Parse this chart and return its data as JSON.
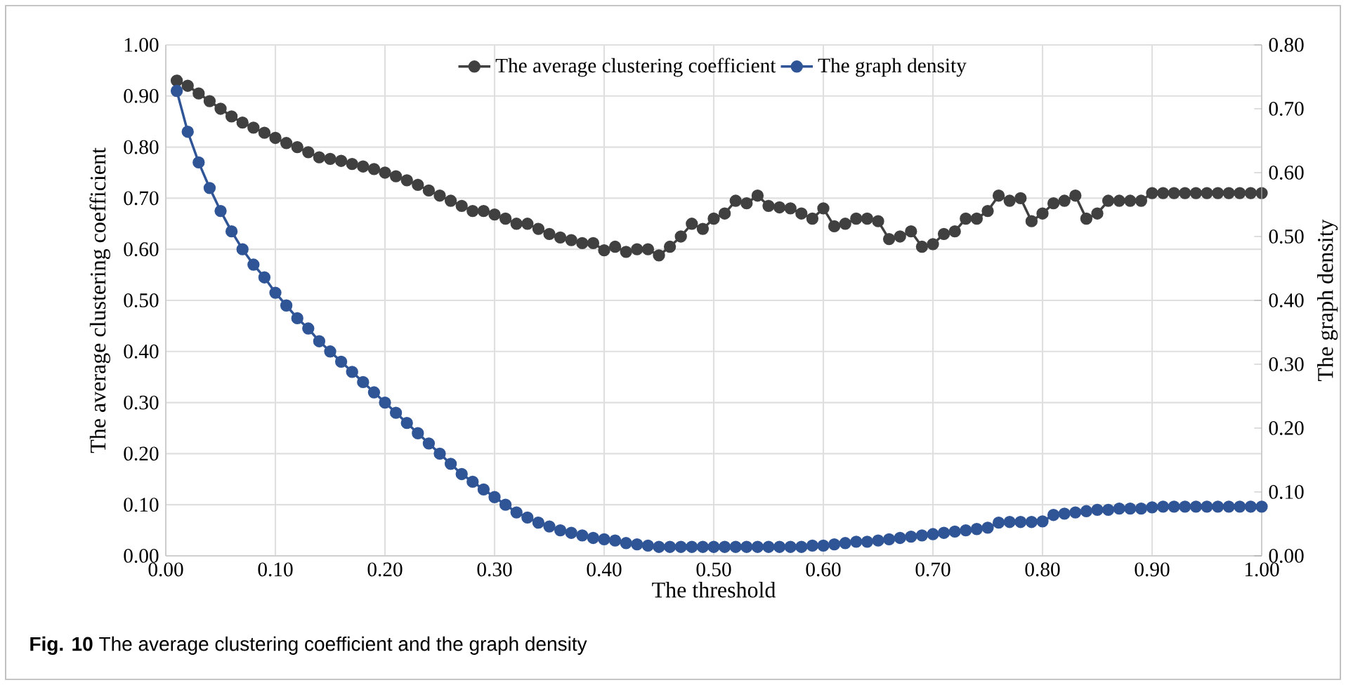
{
  "chart_data": {
    "type": "line",
    "xlabel": "The threshold",
    "ylabel": "The average clustering coefficient",
    "y2label": "The graph density",
    "annotations": [
      "**Fig. 10** The average clustering coefficient and the graph density"
    ],
    "x": [
      0.01,
      0.02,
      0.03,
      0.04,
      0.05,
      0.06,
      0.07,
      0.08,
      0.09,
      0.1,
      0.11,
      0.12,
      0.13,
      0.14,
      0.15,
      0.16,
      0.17,
      0.18,
      0.19,
      0.2,
      0.21,
      0.22,
      0.23,
      0.24,
      0.25,
      0.26,
      0.27,
      0.28,
      0.29,
      0.3,
      0.31,
      0.32,
      0.33,
      0.34,
      0.35,
      0.36,
      0.37,
      0.38,
      0.39,
      0.4,
      0.41,
      0.42,
      0.43,
      0.44,
      0.45,
      0.46,
      0.47,
      0.48,
      0.49,
      0.5,
      0.51,
      0.52,
      0.53,
      0.54,
      0.55,
      0.56,
      0.57,
      0.58,
      0.59,
      0.6,
      0.61,
      0.62,
      0.63,
      0.64,
      0.65,
      0.66,
      0.67,
      0.68,
      0.69,
      0.7,
      0.71,
      0.72,
      0.73,
      0.74,
      0.75,
      0.76,
      0.77,
      0.78,
      0.79,
      0.8,
      0.81,
      0.82,
      0.83,
      0.84,
      0.85,
      0.86,
      0.87,
      0.88,
      0.89,
      0.9,
      0.91,
      0.92,
      0.93,
      0.94,
      0.95,
      0.96,
      0.97,
      0.98,
      0.99,
      1.0
    ],
    "series": [
      {
        "name": "The average clustering coefficient",
        "color": "#404040",
        "axis": "y",
        "values": [
          0.93,
          0.92,
          0.905,
          0.89,
          0.875,
          0.86,
          0.848,
          0.838,
          0.828,
          0.818,
          0.808,
          0.8,
          0.79,
          0.78,
          0.777,
          0.773,
          0.767,
          0.762,
          0.757,
          0.75,
          0.743,
          0.735,
          0.726,
          0.715,
          0.705,
          0.695,
          0.685,
          0.675,
          0.675,
          0.668,
          0.66,
          0.65,
          0.65,
          0.64,
          0.63,
          0.623,
          0.618,
          0.612,
          0.612,
          0.598,
          0.605,
          0.595,
          0.6,
          0.6,
          0.588,
          0.605,
          0.625,
          0.65,
          0.64,
          0.66,
          0.67,
          0.695,
          0.69,
          0.705,
          0.685,
          0.682,
          0.68,
          0.67,
          0.66,
          0.68,
          0.645,
          0.65,
          0.66,
          0.66,
          0.655,
          0.62,
          0.625,
          0.635,
          0.605,
          0.61,
          0.63,
          0.635,
          0.66,
          0.66,
          0.675,
          0.705,
          0.695,
          0.7,
          0.655,
          0.67,
          0.69,
          0.695,
          0.705,
          0.66,
          0.67,
          0.695,
          0.695,
          0.695,
          0.695,
          0.71,
          0.71,
          0.71,
          0.71,
          0.71,
          0.71,
          0.71,
          0.71,
          0.71,
          0.71,
          0.71
        ]
      },
      {
        "name": "The graph density",
        "color": "#2f5597",
        "axis": "y2",
        "values": [
          0.728,
          0.664,
          0.616,
          0.576,
          0.54,
          0.508,
          0.48,
          0.456,
          0.436,
          0.412,
          0.392,
          0.372,
          0.356,
          0.336,
          0.32,
          0.304,
          0.288,
          0.272,
          0.256,
          0.24,
          0.224,
          0.208,
          0.192,
          0.176,
          0.16,
          0.144,
          0.128,
          0.116,
          0.104,
          0.092,
          0.08,
          0.068,
          0.06,
          0.052,
          0.046,
          0.04,
          0.036,
          0.032,
          0.028,
          0.026,
          0.024,
          0.02,
          0.018,
          0.016,
          0.014,
          0.014,
          0.014,
          0.014,
          0.014,
          0.014,
          0.014,
          0.014,
          0.014,
          0.014,
          0.014,
          0.014,
          0.014,
          0.014,
          0.016,
          0.016,
          0.018,
          0.02,
          0.022,
          0.022,
          0.024,
          0.026,
          0.028,
          0.03,
          0.032,
          0.034,
          0.036,
          0.038,
          0.04,
          0.042,
          0.044,
          0.052,
          0.053,
          0.053,
          0.053,
          0.054,
          0.064,
          0.066,
          0.068,
          0.07,
          0.072,
          0.072,
          0.074,
          0.074,
          0.074,
          0.076,
          0.077,
          0.077,
          0.077,
          0.077,
          0.077,
          0.077,
          0.077,
          0.077,
          0.077,
          0.077
        ]
      }
    ],
    "xlim": [
      0,
      1
    ],
    "ylim": [
      0,
      1
    ],
    "y2lim": [
      0,
      0.8
    ],
    "xticks": [
      {
        "value": 0,
        "label": "0.00"
      },
      {
        "value": 0.1,
        "label": "0.10"
      },
      {
        "value": 0.2,
        "label": "0.20"
      },
      {
        "value": 0.3,
        "label": "0.30"
      },
      {
        "value": 0.4,
        "label": "0.40"
      },
      {
        "value": 0.5,
        "label": "0.50"
      },
      {
        "value": 0.6,
        "label": "0.60"
      },
      {
        "value": 0.7,
        "label": "0.70"
      },
      {
        "value": 0.8,
        "label": "0.80"
      },
      {
        "value": 0.9,
        "label": "0.90"
      },
      {
        "value": 1,
        "label": "1.00"
      }
    ],
    "yticks": [
      {
        "value": 0,
        "label": "0.00"
      },
      {
        "value": 0.1,
        "label": "0.10"
      },
      {
        "value": 0.2,
        "label": "0.20"
      },
      {
        "value": 0.3,
        "label": "0.30"
      },
      {
        "value": 0.4,
        "label": "0.40"
      },
      {
        "value": 0.5,
        "label": "0.50"
      },
      {
        "value": 0.6,
        "label": "0.60"
      },
      {
        "value": 0.7,
        "label": "0.70"
      },
      {
        "value": 0.8,
        "label": "0.80"
      },
      {
        "value": 0.9,
        "label": "0.90"
      },
      {
        "value": 1,
        "label": "1.00"
      }
    ],
    "y2ticks": [
      {
        "value": 0,
        "label": "0.00"
      },
      {
        "value": 0.1,
        "label": "0.10"
      },
      {
        "value": 0.2,
        "label": "0.20"
      },
      {
        "value": 0.3,
        "label": "0.30"
      },
      {
        "value": 0.4,
        "label": "0.40"
      },
      {
        "value": 0.5,
        "label": "0.50"
      },
      {
        "value": 0.6,
        "label": "0.60"
      },
      {
        "value": 0.7,
        "label": "0.70"
      },
      {
        "value": 0.8,
        "label": "0.80"
      }
    ],
    "grid": true,
    "legend": "top",
    "marker": "circle",
    "line_style": "solid"
  }
}
